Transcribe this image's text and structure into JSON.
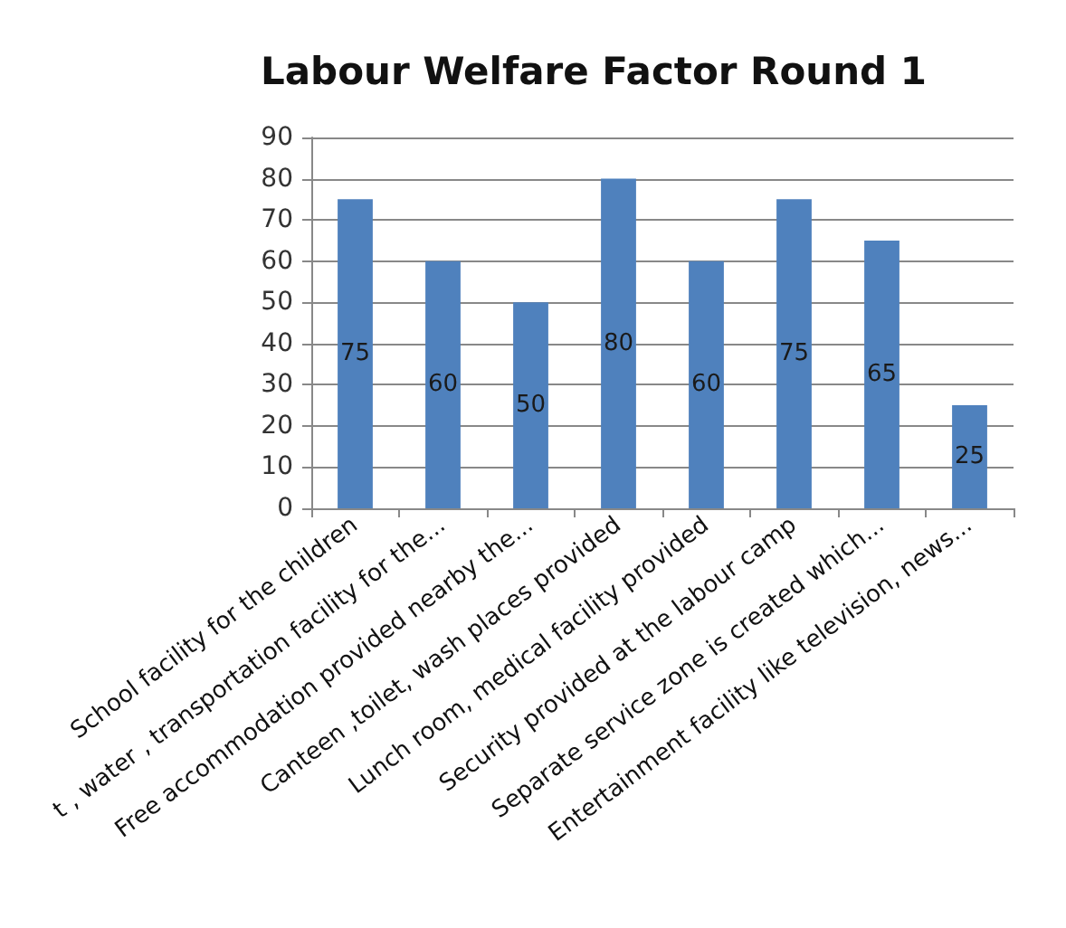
{
  "chart_data": {
    "type": "bar",
    "title": "Labour Welfare Factor Round 1",
    "categories": [
      "School facility for the children",
      "t , water , transportation facility for the...",
      "Free accommodation provided nearby the...",
      "Canteen ,toilet, wash places provided",
      "Lunch room, medical facility provided",
      "Security provided at the labour camp",
      "Separate service zone is created which...",
      "Entertainment facility like television, news..."
    ],
    "values": [
      75,
      60,
      50,
      80,
      60,
      75,
      65,
      25
    ],
    "color": "#4f81bd",
    "ylim": [
      0,
      90
    ],
    "yticks": [
      0,
      10,
      20,
      30,
      40,
      50,
      60,
      70,
      80,
      90
    ],
    "grid": "y",
    "data_labels": true
  }
}
